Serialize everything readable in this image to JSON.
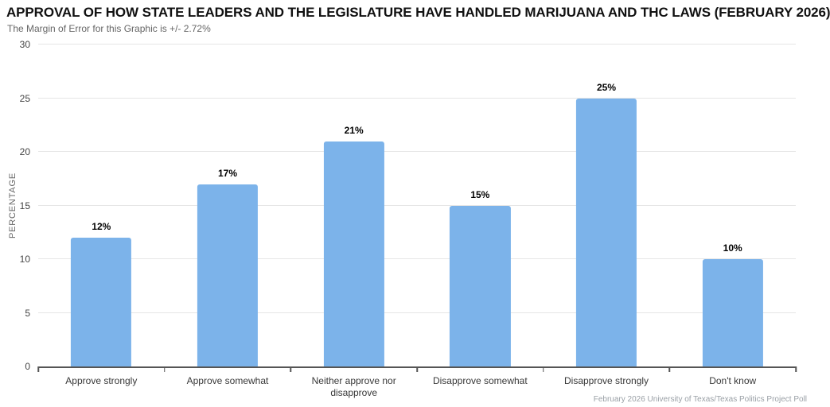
{
  "header": {
    "title": "APPROVAL OF HOW STATE LEADERS AND THE LEGISLATURE HAVE HANDLED MARIJUANA AND THC LAWS (FEBRUARY 2026)",
    "subtitle": "The Margin of Error for this Graphic is +/- 2.72%"
  },
  "chart_data": {
    "type": "bar",
    "title": "APPROVAL OF HOW STATE LEADERS AND THE LEGISLATURE HAVE HANDLED MARIJUANA AND THC LAWS (FEBRUARY 2026)",
    "subtitle": "The Margin of Error for this Graphic is +/- 2.72%",
    "categories": [
      "Approve strongly",
      "Approve somewhat",
      "Neither approve nor disapprove",
      "Disapprove somewhat",
      "Disapprove strongly",
      "Don't know"
    ],
    "values": [
      12,
      17,
      21,
      15,
      25,
      10
    ],
    "value_suffix": "%",
    "data_labels": [
      "12%",
      "17%",
      "21%",
      "15%",
      "25%",
      "10%"
    ],
    "xlabel": "",
    "ylabel": "PERCENTAGE",
    "ylim": [
      0,
      30
    ],
    "yticks": [
      0,
      5,
      10,
      15,
      20,
      25,
      30
    ],
    "grid": true,
    "legend_position": "none",
    "bar_color": "#7cb3ea",
    "gridline_color": "#e6e6e6",
    "axis_line_color": "#555555"
  },
  "footer": {
    "credits": "February 2026 University of Texas/Texas Politics Project Poll"
  }
}
